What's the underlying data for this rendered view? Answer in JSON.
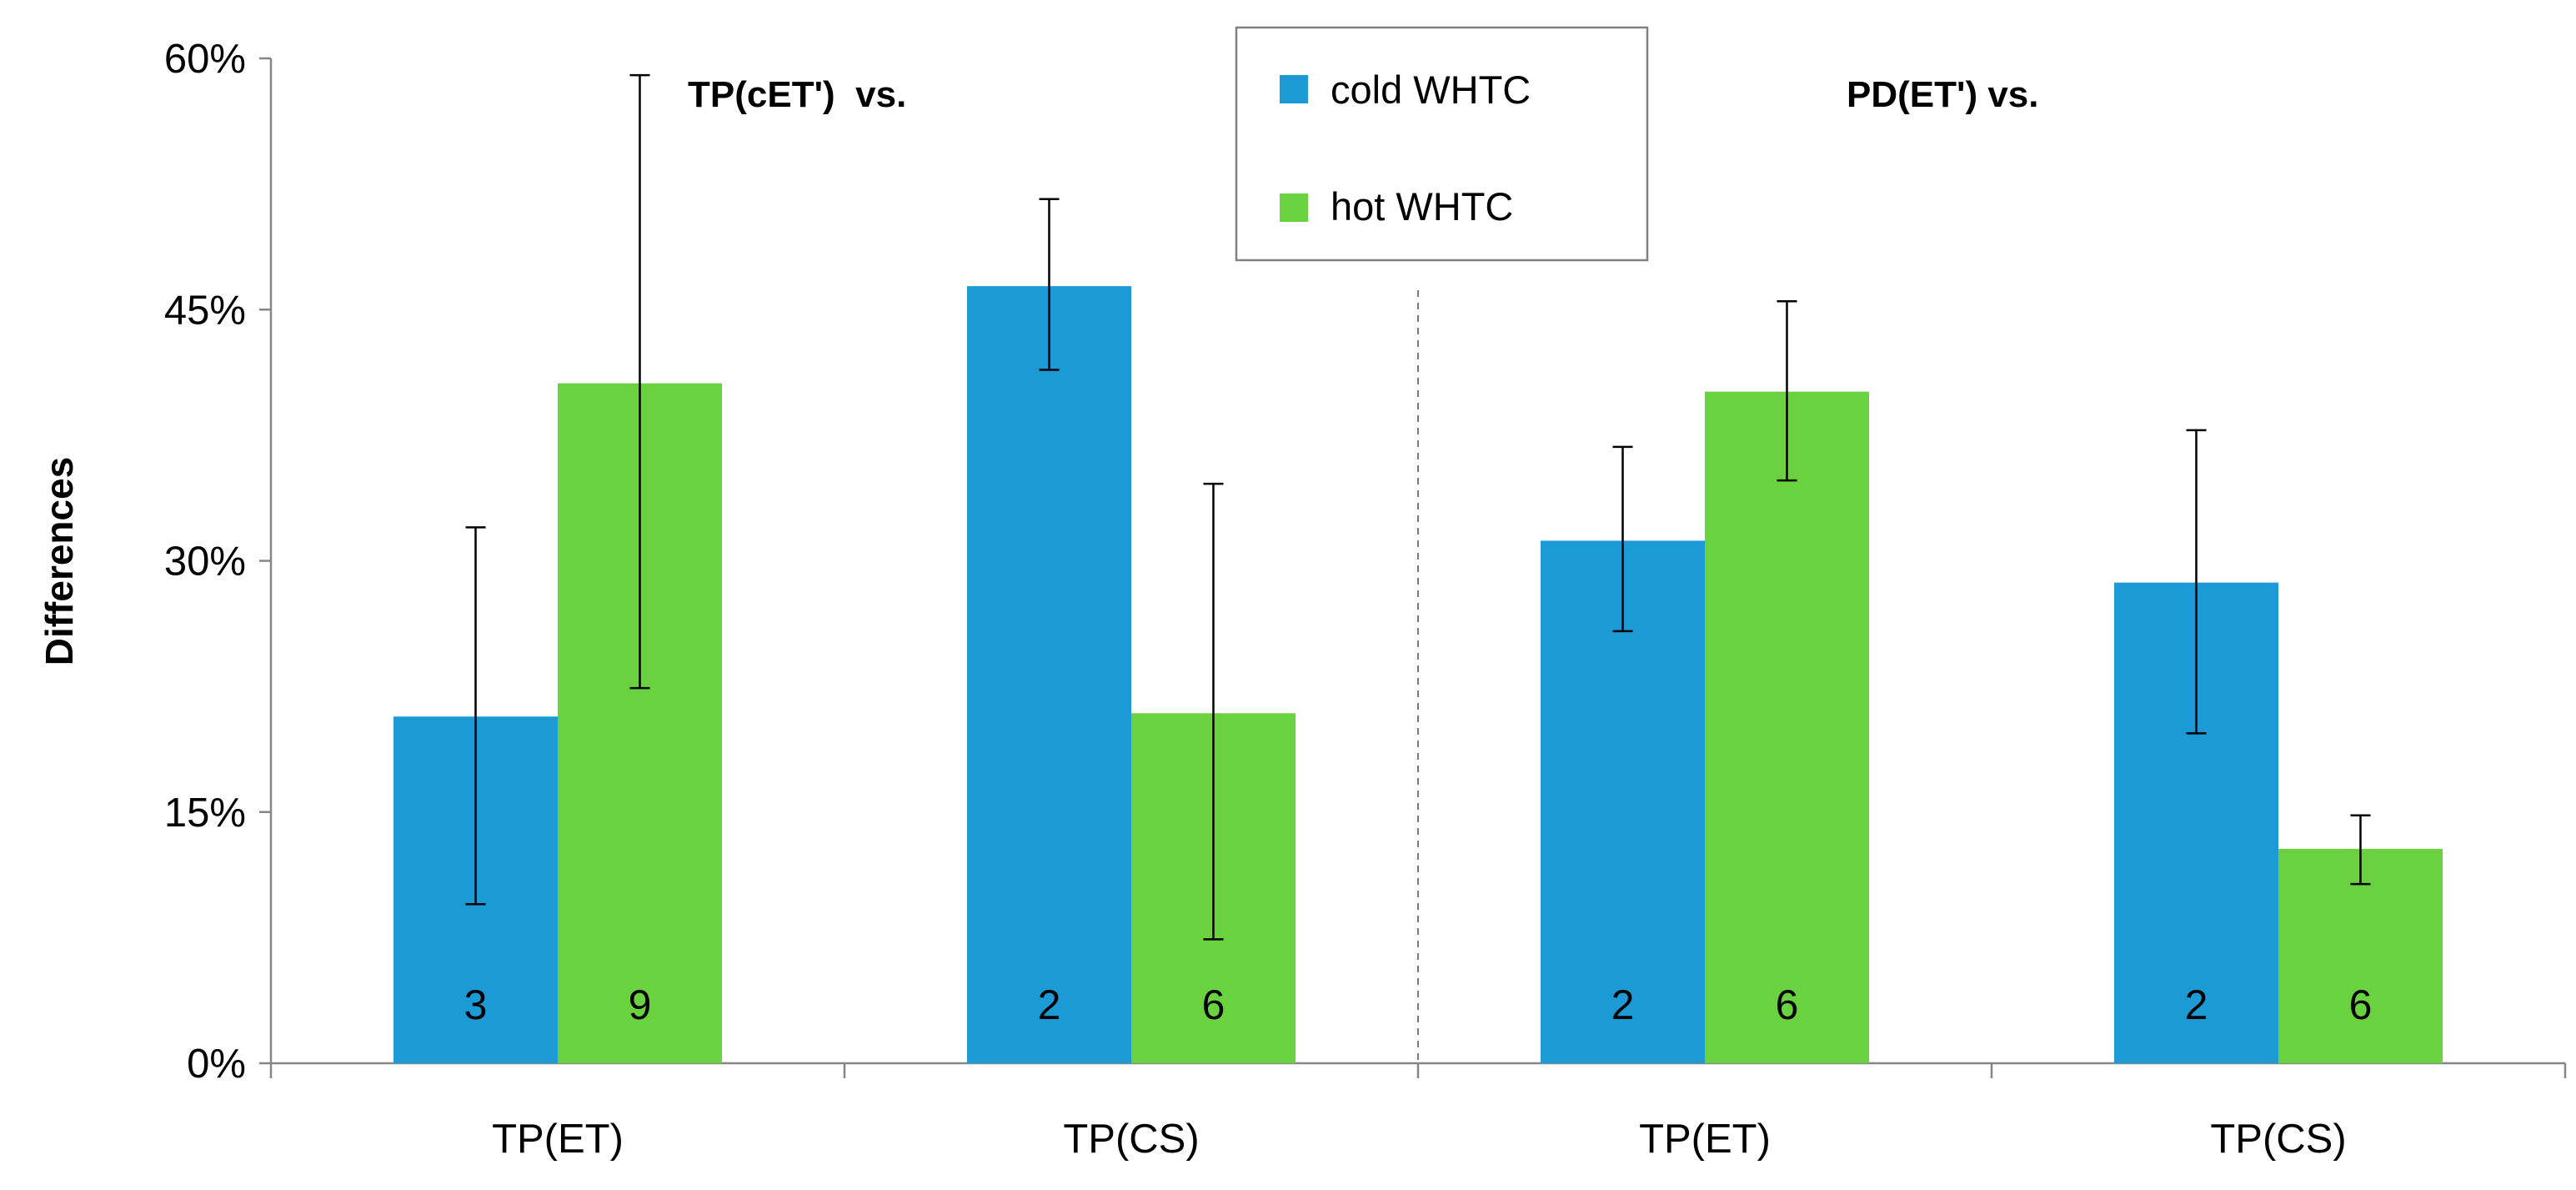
{
  "chart_data": {
    "type": "bar",
    "ylabel": "Differences",
    "ylim": [
      0,
      60
    ],
    "yticks": [
      "0%",
      "15%",
      "30%",
      "45%",
      "60%"
    ],
    "ytick_values": [
      0,
      15,
      30,
      45,
      60
    ],
    "categories": [
      "TP(ET)",
      "TP(CS)",
      "TP(ET)",
      "TP(CS)"
    ],
    "group_titles": [
      {
        "text": "TP(cET')  vs.",
        "span": "categories 1-2"
      },
      {
        "text": "PD(ET') vs.",
        "span": "categories 3-4"
      }
    ],
    "series": [
      {
        "name": "cold WHTC",
        "color": "#1c9ad6",
        "values": [
          20.7,
          46.4,
          31.2,
          28.7
        ],
        "error_low": [
          9.5,
          41.4,
          25.8,
          19.7
        ],
        "error_high": [
          32.0,
          51.6,
          36.8,
          37.8
        ],
        "counts": [
          "3",
          "2",
          "2",
          "2"
        ]
      },
      {
        "name": "hot WHTC",
        "color": "#6bd23f",
        "values": [
          40.6,
          20.9,
          40.1,
          12.8
        ],
        "error_low": [
          22.4,
          7.4,
          34.8,
          10.7
        ],
        "error_high": [
          59.0,
          34.6,
          45.5,
          14.8
        ],
        "counts": [
          "9",
          "6",
          "6",
          "6"
        ]
      }
    ],
    "legend": {
      "position": "top-center",
      "entries": [
        "cold WHTC",
        "hot WHTC"
      ]
    },
    "divider": "dashed line between categories 2 and 3",
    "grid": false
  }
}
